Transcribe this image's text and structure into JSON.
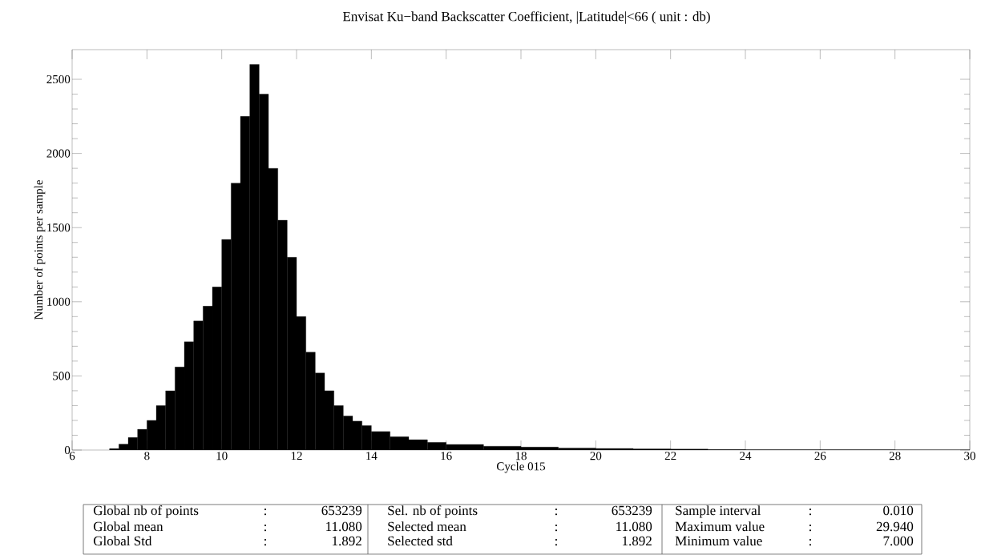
{
  "chart_data": {
    "type": "histogram",
    "title": "Envisat Ku−band Backscatter Coefficient, |Latitude|<66  ( unit : db)",
    "xlabel": "Cycle 015",
    "ylabel": "Number of points per sample",
    "color": "#000000",
    "bins": [
      7,
      7.25,
      7.5,
      7.75,
      8,
      8.25,
      8.5,
      8.75,
      9,
      9.25,
      9.5,
      9.75,
      10,
      10.25,
      10.5,
      10.75,
      11,
      11.25,
      11.5,
      11.75,
      12,
      12.25,
      12.5,
      12.75,
      13,
      13.25,
      13.5,
      13.75,
      14,
      14.5,
      15,
      15.5,
      16,
      17,
      18,
      19,
      20,
      21,
      22,
      23,
      24,
      26,
      28,
      30
    ],
    "values": [
      10,
      40,
      85,
      140,
      200,
      300,
      400,
      560,
      730,
      870,
      970,
      1100,
      1420,
      1800,
      2250,
      2600,
      2400,
      1900,
      1550,
      1300,
      900,
      660,
      520,
      400,
      300,
      230,
      195,
      165,
      125,
      90,
      70,
      52,
      38,
      26,
      20,
      14,
      11,
      8,
      6,
      4,
      3,
      2,
      1
    ],
    "xlim": [
      6,
      30
    ],
    "ylim": [
      0,
      2700
    ],
    "xticks": [
      6,
      8,
      10,
      12,
      14,
      16,
      18,
      20,
      22,
      24,
      26,
      28,
      30
    ],
    "yticks": [
      0,
      500,
      1000,
      1500,
      2000,
      2500
    ],
    "annotations": [
      "Global nb of points",
      ":",
      "653239",
      "Sel. nb of points",
      ":",
      "653239",
      "Sample interval",
      ":",
      "0.010",
      "Global mean",
      ":",
      "11.080",
      "Selected mean",
      ":",
      "11.080",
      "Maximum value",
      ":",
      "29.940",
      "Global Std",
      ":",
      "1.892",
      "Selected std",
      ":",
      "1.892",
      "Minimum value",
      ":",
      "7.000"
    ]
  }
}
